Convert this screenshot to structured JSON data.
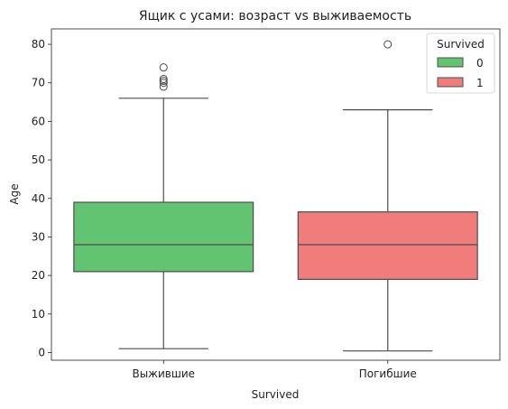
{
  "chart_data": {
    "type": "box",
    "title": "Ящик с усами: возраст vs выживаемость",
    "xlabel": "Survived",
    "ylabel": "Age",
    "categories": [
      "Выжившие",
      "Погибшие"
    ],
    "ylim": [
      -2,
      84
    ],
    "yticks": [
      0,
      10,
      20,
      30,
      40,
      50,
      60,
      70,
      80
    ],
    "grid": false,
    "legend": {
      "title": "Survived",
      "placement": "top-right",
      "entries": [
        {
          "label": "0",
          "color": "#62c370"
        },
        {
          "label": "1",
          "color": "#f07c7c"
        }
      ]
    },
    "boxes": [
      {
        "category": "Выжившие",
        "legend_label": "0",
        "color": "#62c370",
        "whisker_low": 1,
        "q1": 21,
        "median": 28,
        "q3": 39,
        "whisker_high": 66,
        "outliers": [
          69,
          70,
          70.5,
          71,
          74
        ]
      },
      {
        "category": "Погибшие",
        "legend_label": "1",
        "color": "#f07c7c",
        "whisker_low": 0.42,
        "q1": 19,
        "median": 28,
        "q3": 36.5,
        "whisker_high": 63,
        "outliers": [
          80
        ]
      }
    ]
  }
}
